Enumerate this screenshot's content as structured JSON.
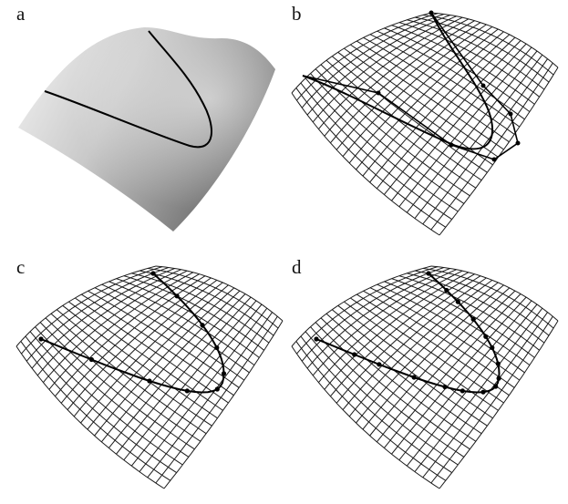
{
  "panels": [
    {
      "label": "a",
      "style": "shaded",
      "curve": "smooth",
      "control_polygon": false
    },
    {
      "label": "b",
      "style": "mesh",
      "curve": "smooth",
      "control_polygon": true
    },
    {
      "label": "c",
      "style": "mesh",
      "curve": "dotted",
      "control_polygon": false
    },
    {
      "label": "d",
      "style": "mesh",
      "curve": "dotted",
      "control_polygon": false
    }
  ],
  "colors": {
    "background": "#ffffff",
    "mesh": "#1a1a1a",
    "curve": "#000000",
    "shade_light": "#f2f2f2",
    "shade_dark": "#6e6e6e"
  }
}
